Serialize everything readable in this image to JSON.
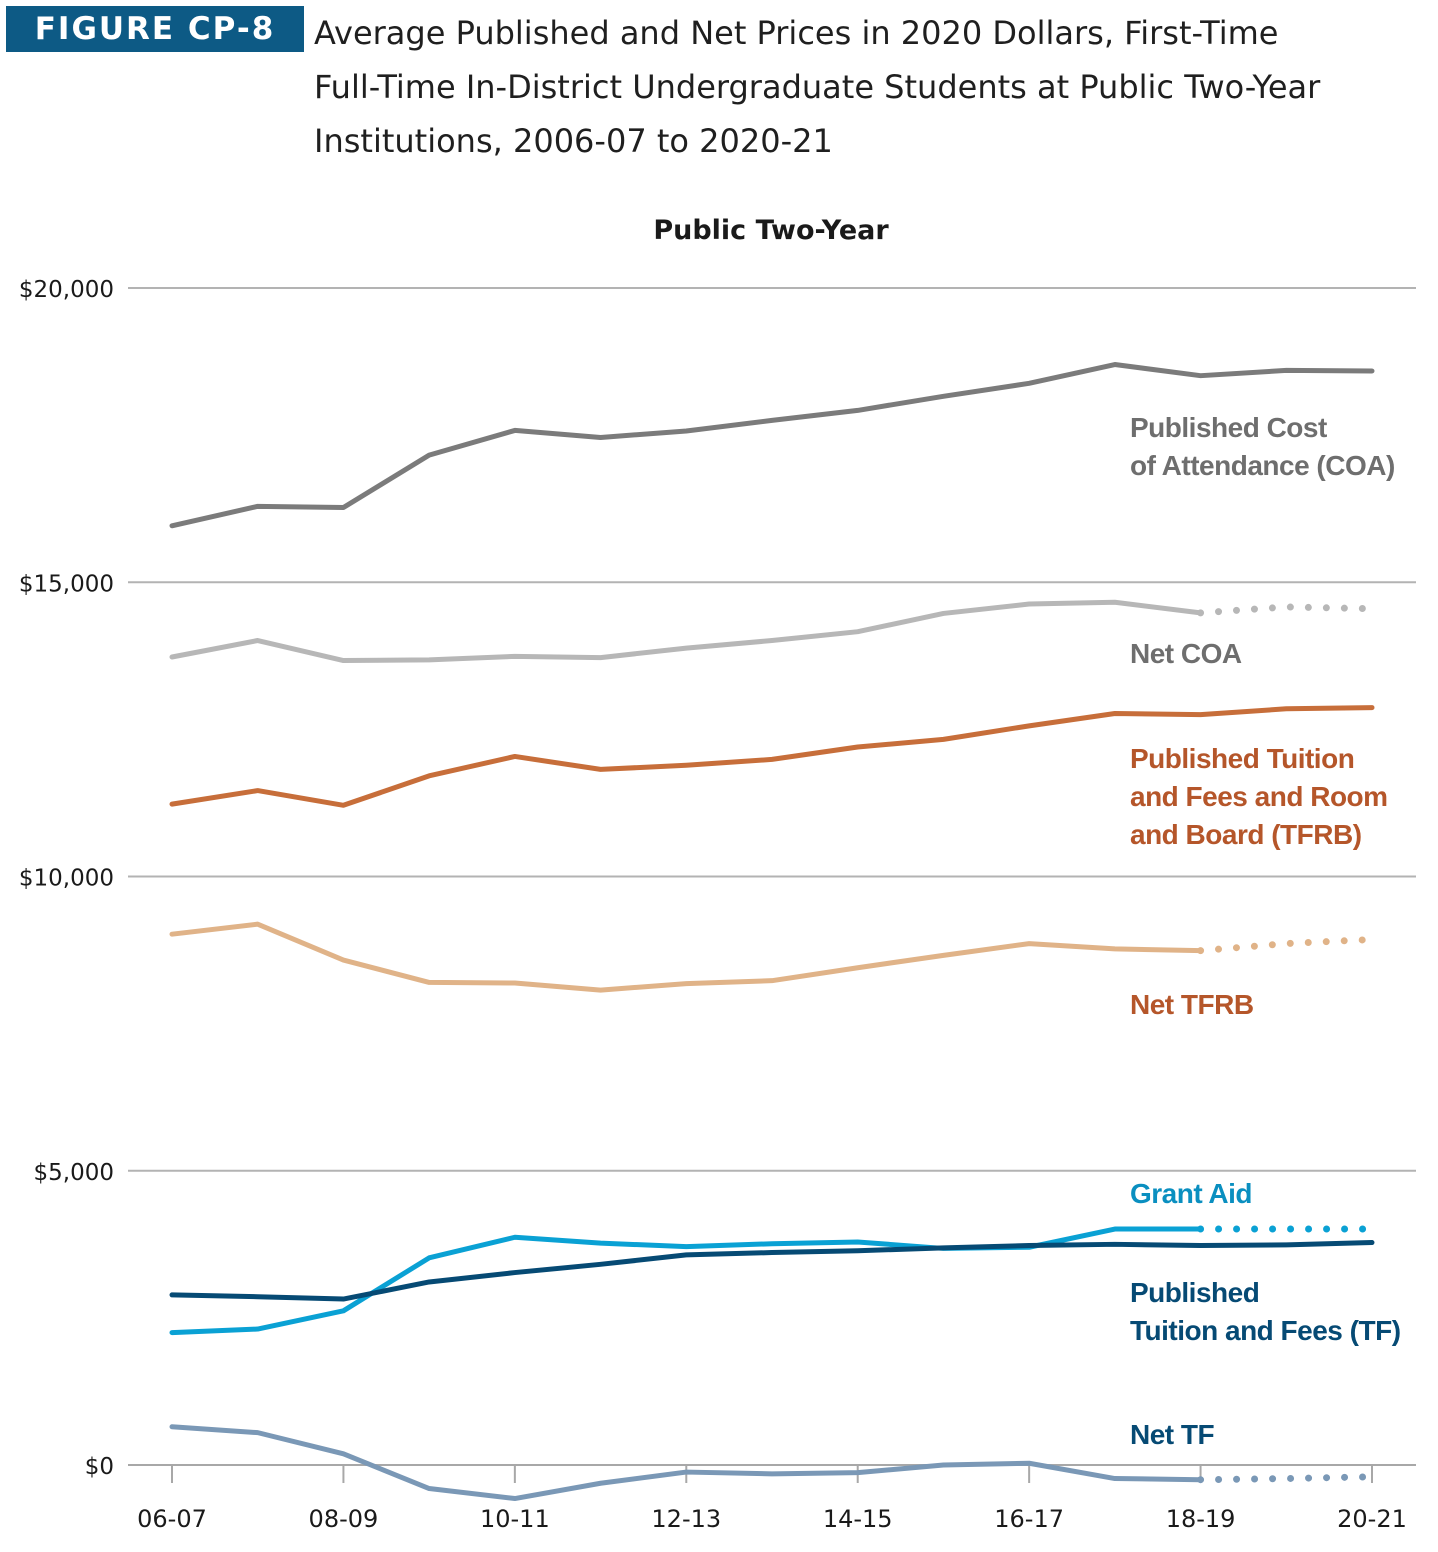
{
  "figure": {
    "label": "FIGURE CP-8",
    "title_lines": [
      "Average Published and Net Prices in 2020 Dollars, First-Time",
      "Full-Time In-District Undergraduate Students at Public Two-Year",
      "Institutions, 2006-07 to 2020-21"
    ]
  },
  "chart_data": {
    "type": "line",
    "title": "Public Two-Year",
    "xlabel": "",
    "ylabel": "",
    "ylim": [
      0,
      20000
    ],
    "y_ticks": [
      {
        "value": 0,
        "label": "$0"
      },
      {
        "value": 5000,
        "label": "$5,000"
      },
      {
        "value": 10000,
        "label": "$10,000"
      },
      {
        "value": 15000,
        "label": "$15,000"
      },
      {
        "value": 20000,
        "label": "$20,000"
      }
    ],
    "categories": [
      "06-07",
      "07-08",
      "08-09",
      "09-10",
      "10-11",
      "11-12",
      "12-13",
      "13-14",
      "14-15",
      "15-16",
      "16-17",
      "17-18",
      "18-19",
      "19-20",
      "20-21"
    ],
    "x_tick_labels": [
      "06-07",
      "08-09",
      "10-11",
      "12-13",
      "14-15",
      "16-17",
      "18-19",
      "20-21"
    ],
    "series": [
      {
        "name": "Published Cost of Attendance (COA)",
        "label_lines": [
          "Published Cost",
          "of Attendance (COA)"
        ],
        "color": "#7b7b7b",
        "label_color": "#6e6e6e",
        "values": [
          15960,
          16290,
          16270,
          17160,
          17580,
          17460,
          17570,
          17750,
          17920,
          18160,
          18380,
          18700,
          18510,
          18600,
          18590
        ],
        "solid_until": 14
      },
      {
        "name": "Net COA",
        "label_lines": [
          "Net COA"
        ],
        "color": "#b7b7b7",
        "label_color": "#6e6e6e",
        "values": [
          13730,
          14010,
          13670,
          13680,
          13740,
          13720,
          13880,
          14010,
          14160,
          14470,
          14630,
          14660,
          14480,
          14580,
          14550
        ],
        "solid_until": 12
      },
      {
        "name": "Published Tuition and Fees and Room and Board (TFRB)",
        "label_lines": [
          "Published Tuition",
          "and Fees and Room",
          "and Board (TFRB)"
        ],
        "color": "#c76e3a",
        "label_color": "#b5562a",
        "values": [
          11230,
          11460,
          11210,
          11710,
          12040,
          11820,
          11890,
          11990,
          12200,
          12330,
          12560,
          12770,
          12750,
          12850,
          12870
        ],
        "solid_until": 14
      },
      {
        "name": "Net TFRB",
        "label_lines": [
          "Net TFRB"
        ],
        "color": "#e0b388",
        "label_color": "#b5562a",
        "values": [
          9020,
          9190,
          8580,
          8200,
          8190,
          8070,
          8180,
          8230,
          8450,
          8660,
          8860,
          8770,
          8740,
          8860,
          8930
        ],
        "solid_until": 12
      },
      {
        "name": "Grant Aid",
        "label_lines": [
          "Grant Aid"
        ],
        "color": "#0aa1d4",
        "label_color": "#0a8fc0",
        "values": [
          2250,
          2310,
          2620,
          3520,
          3870,
          3770,
          3710,
          3760,
          3790,
          3680,
          3700,
          4010,
          4010,
          4010,
          4010
        ],
        "solid_until": 12
      },
      {
        "name": "Published Tuition and Fees (TF)",
        "label_lines": [
          "Published",
          "Tuition and Fees (TF)"
        ],
        "color": "#064a74",
        "label_color": "#064a74",
        "values": [
          2890,
          2860,
          2820,
          3110,
          3270,
          3410,
          3570,
          3610,
          3640,
          3690,
          3730,
          3750,
          3730,
          3740,
          3780
        ],
        "solid_until": 14
      },
      {
        "name": "Net TF",
        "label_lines": [
          "Net TF"
        ],
        "color": "#7a98b6",
        "label_color": "#064a74",
        "values": [
          650,
          550,
          190,
          -400,
          -570,
          -310,
          -120,
          -150,
          -130,
          0,
          30,
          -230,
          -250,
          -230,
          -200
        ],
        "solid_until": 12
      }
    ]
  }
}
